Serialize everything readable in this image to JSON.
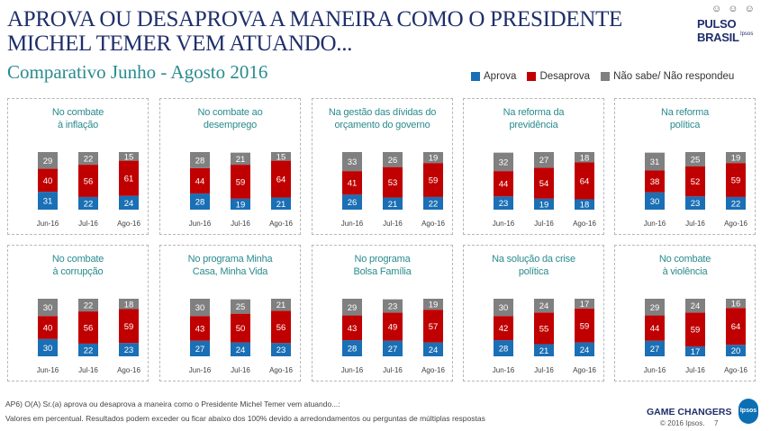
{
  "header": {
    "title_line1": "APROVA OU DESAPROVA A MANEIRA COMO O PRESIDENTE",
    "title_line2": "MICHEL TEMER VEM ATUANDO...",
    "subtitle": "Comparativo Junho - Agosto 2016"
  },
  "logo": {
    "brand": "PULSO BRASIL",
    "sub": "Ipsos",
    "circles": "☺ ☺ ☺"
  },
  "legend": [
    {
      "label": "Aprova",
      "color": "#1a6fb5"
    },
    {
      "label": "Desaprova",
      "color": "#c00000"
    },
    {
      "label": "Não sabe/ Não respondeu",
      "color": "#808080"
    }
  ],
  "chart_data": [
    {
      "type": "bar",
      "stacked": true,
      "title": "No combate\nà inflação",
      "categories": [
        "Jun-16",
        "Jul-16",
        "Ago-16"
      ],
      "series": [
        {
          "name": "Aprova",
          "values": [
            31,
            22,
            24
          ]
        },
        {
          "name": "Desaprova",
          "values": [
            40,
            56,
            61
          ]
        },
        {
          "name": "Não sabe/ Não respondeu",
          "values": [
            29,
            22,
            15
          ]
        }
      ]
    },
    {
      "type": "bar",
      "stacked": true,
      "title": "No combate ao\ndesemprego",
      "categories": [
        "Jun-16",
        "Jul-16",
        "Ago-16"
      ],
      "series": [
        {
          "name": "Aprova",
          "values": [
            28,
            19,
            21
          ]
        },
        {
          "name": "Desaprova",
          "values": [
            44,
            59,
            64
          ]
        },
        {
          "name": "Não sabe/ Não respondeu",
          "values": [
            28,
            21,
            15
          ]
        }
      ]
    },
    {
      "type": "bar",
      "stacked": true,
      "title": "Na gestão das dívidas do\norçamento do governo",
      "categories": [
        "Jun-16",
        "Jul-16",
        "Ago-16"
      ],
      "series": [
        {
          "name": "Aprova",
          "values": [
            26,
            21,
            22
          ]
        },
        {
          "name": "Desaprova",
          "values": [
            41,
            53,
            59
          ]
        },
        {
          "name": "Não sabe/ Não respondeu",
          "values": [
            33,
            26,
            19
          ]
        }
      ]
    },
    {
      "type": "bar",
      "stacked": true,
      "title": "Na reforma da\nprevidência",
      "categories": [
        "Jun-16",
        "Jul-16",
        "Ago-16"
      ],
      "series": [
        {
          "name": "Aprova",
          "values": [
            23,
            19,
            18
          ]
        },
        {
          "name": "Desaprova",
          "values": [
            44,
            54,
            64
          ]
        },
        {
          "name": "Não sabe/ Não respondeu",
          "values": [
            32,
            27,
            18
          ]
        }
      ]
    },
    {
      "type": "bar",
      "stacked": true,
      "title": "Na reforma\npolítica",
      "categories": [
        "Jun-16",
        "Jul-16",
        "Ago-16"
      ],
      "series": [
        {
          "name": "Aprova",
          "values": [
            30,
            23,
            22
          ]
        },
        {
          "name": "Desaprova",
          "values": [
            38,
            52,
            59
          ]
        },
        {
          "name": "Não sabe/ Não respondeu",
          "values": [
            31,
            25,
            19
          ]
        }
      ]
    },
    {
      "type": "bar",
      "stacked": true,
      "title": "No combate\nà corrupção",
      "categories": [
        "Jun-16",
        "Jul-16",
        "Ago-16"
      ],
      "series": [
        {
          "name": "Aprova",
          "values": [
            30,
            22,
            23
          ]
        },
        {
          "name": "Desaprova",
          "values": [
            40,
            56,
            59
          ]
        },
        {
          "name": "Não sabe/ Não respondeu",
          "values": [
            30,
            22,
            18
          ]
        }
      ]
    },
    {
      "type": "bar",
      "stacked": true,
      "title": "No programa Minha\nCasa, Minha Vida",
      "categories": [
        "Jun-16",
        "Jul-16",
        "Ago-16"
      ],
      "series": [
        {
          "name": "Aprova",
          "values": [
            27,
            24,
            23
          ]
        },
        {
          "name": "Desaprova",
          "values": [
            43,
            50,
            56
          ]
        },
        {
          "name": "Não sabe/ Não respondeu",
          "values": [
            30,
            25,
            21
          ]
        }
      ]
    },
    {
      "type": "bar",
      "stacked": true,
      "title": "No programa\nBolsa Família",
      "categories": [
        "Jun-16",
        "Jul-16",
        "Ago-16"
      ],
      "series": [
        {
          "name": "Aprova",
          "values": [
            28,
            27,
            24
          ]
        },
        {
          "name": "Desaprova",
          "values": [
            43,
            49,
            57
          ]
        },
        {
          "name": "Não sabe/ Não respondeu",
          "values": [
            29,
            23,
            19
          ]
        }
      ]
    },
    {
      "type": "bar",
      "stacked": true,
      "title": "Na solução da crise\npolítica",
      "categories": [
        "Jun-16",
        "Jul-16",
        "Ago-16"
      ],
      "series": [
        {
          "name": "Aprova",
          "values": [
            28,
            21,
            24
          ]
        },
        {
          "name": "Desaprova",
          "values": [
            42,
            55,
            59
          ]
        },
        {
          "name": "Não sabe/ Não respondeu",
          "values": [
            30,
            24,
            17
          ]
        }
      ]
    },
    {
      "type": "bar",
      "stacked": true,
      "title": "No combate\nà violência",
      "categories": [
        "Jun-16",
        "Jul-16",
        "Ago-16"
      ],
      "series": [
        {
          "name": "Aprova",
          "values": [
            27,
            17,
            20
          ]
        },
        {
          "name": "Desaprova",
          "values": [
            44,
            59,
            64
          ]
        },
        {
          "name": "Não sabe/ Não respondeu",
          "values": [
            29,
            24,
            16
          ]
        }
      ]
    }
  ],
  "footer": {
    "note1": "AP6) O(A) Sr.(a) aprova ou desaprova a maneira como o Presidente Michel Temer vem atuando...:",
    "note2": "Valores em percentual. Resultados podem exceder ou ficar abaixo dos 100% devido a arredondamentos ou perguntas de  múltiplas respostas",
    "game_changers": "GAME CHANGERS",
    "copyright": "© 2016 Ipsos.",
    "page": "7",
    "ipsos_logo": "Ipsos"
  }
}
